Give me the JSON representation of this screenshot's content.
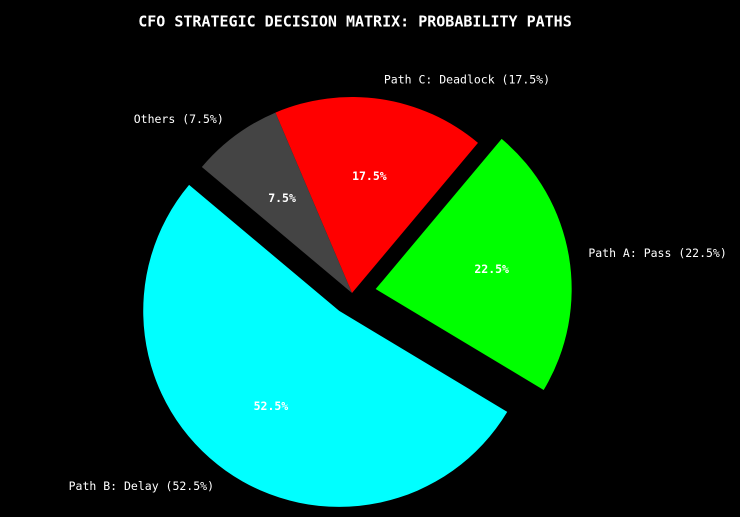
{
  "chart_data": {
    "type": "pie",
    "title": "CFO STRATEGIC DECISION MATRIX: PROBABILITY PATHS",
    "categories": [
      "Path A: Pass (22.5%)",
      "Path C: Deadlock (17.5%)",
      "Others (7.5%)",
      "Path B: Delay (52.5%)"
    ],
    "values": [
      22.5,
      17.5,
      7.5,
      52.5
    ],
    "value_labels": [
      "22.5%",
      "17.5%",
      "7.5%",
      "52.5%"
    ],
    "colors": [
      "#00ff00",
      "#ff0000",
      "#444444",
      "#00ffff"
    ]
  }
}
